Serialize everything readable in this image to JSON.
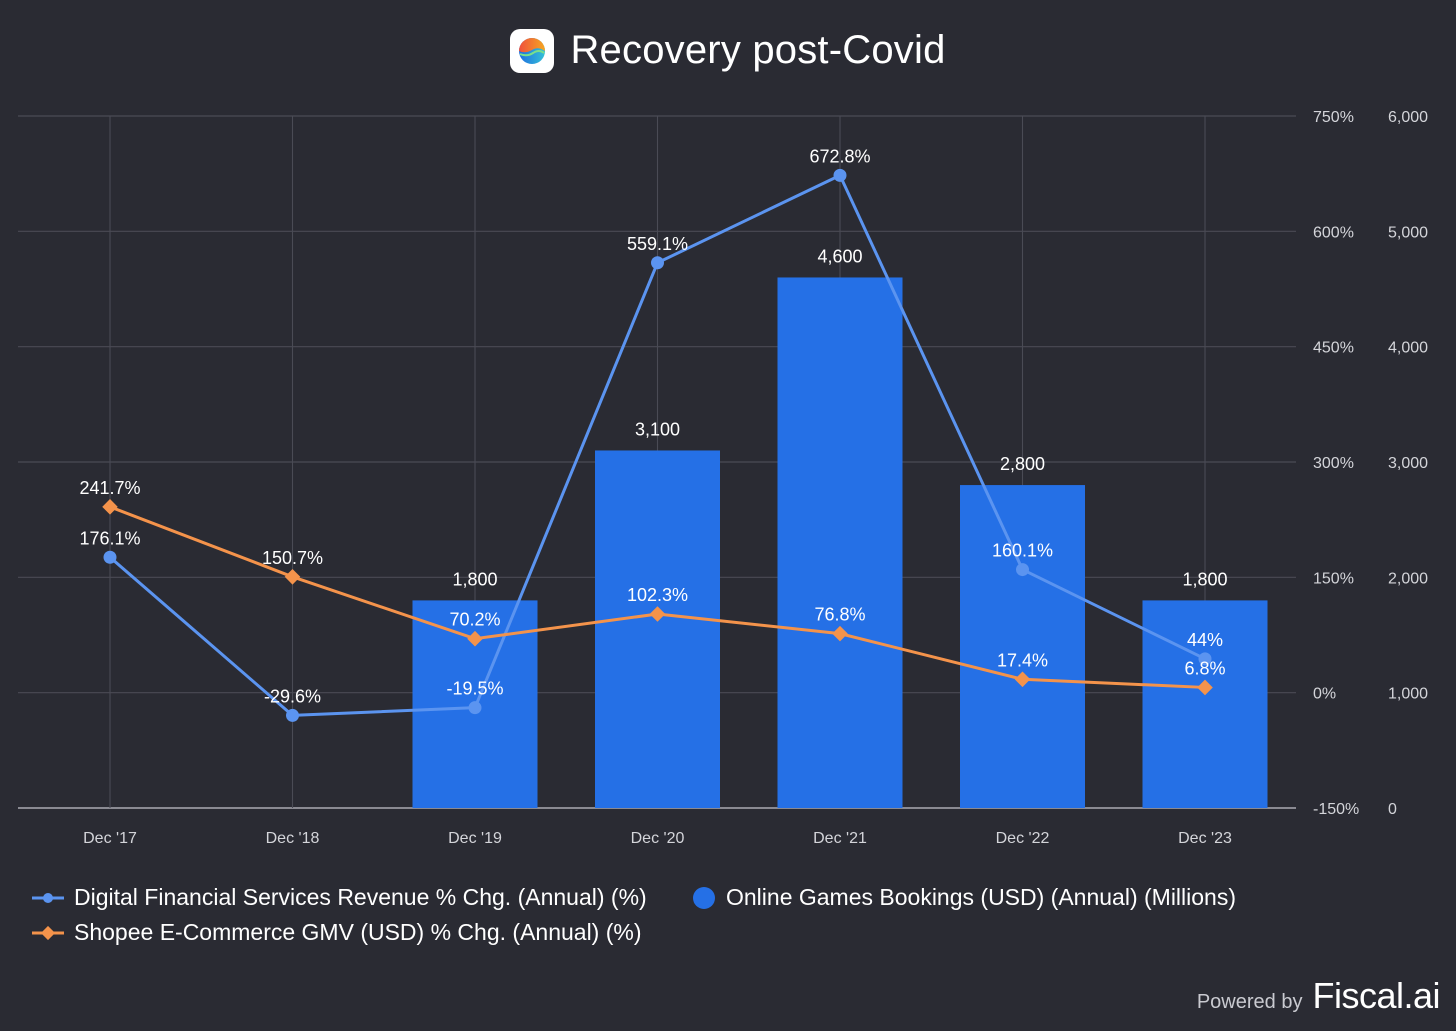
{
  "header": {
    "title": "Recovery post-Covid",
    "icon": "globe-app-icon"
  },
  "colors": {
    "background": "#2a2b33",
    "grid": "#4a4b55",
    "bars": "#2570e6",
    "line_dfs": "#5b94f0",
    "line_shopee": "#f4934b",
    "text": "#ffffff",
    "axis_text": "#d4d5da"
  },
  "chart_data": {
    "type": "bar",
    "categories": [
      "Dec '17",
      "Dec '18",
      "Dec '19",
      "Dec '20",
      "Dec '21",
      "Dec '22",
      "Dec '23"
    ],
    "y_left": {
      "range": [
        -150,
        750
      ],
      "ticks": [
        750,
        600,
        450,
        300,
        150,
        0,
        -150
      ],
      "tick_labels": [
        "750%",
        "600%",
        "450%",
        "300%",
        "150%",
        "0%",
        "-150%"
      ]
    },
    "y_right": {
      "range": [
        0,
        6000
      ],
      "ticks": [
        6000,
        5000,
        4000,
        3000,
        2000,
        1000,
        0
      ],
      "tick_labels": [
        "6,000",
        "5,000",
        "4,000",
        "3,000",
        "2,000",
        "1,000",
        "0"
      ]
    },
    "grid": true,
    "legend_position": "bottom-left",
    "series": [
      {
        "name": "Online Games Bookings (USD) (Annual) (Millions)",
        "type": "bar",
        "axis": "right",
        "values": [
          null,
          null,
          1800,
          3100,
          4600,
          2800,
          1800
        ],
        "labels": [
          null,
          null,
          "1,800",
          "3,100",
          "4,600",
          "2,800",
          "1,800"
        ]
      },
      {
        "name": "Digital Financial Services Revenue % Chg. (Annual) (%)",
        "type": "line",
        "axis": "left",
        "values": [
          176.1,
          -29.6,
          -19.5,
          559.1,
          672.8,
          160.1,
          44
        ],
        "labels": [
          "176.1%",
          "-29.6%",
          "-19.5%",
          "559.1%",
          "672.8%",
          "160.1%",
          "44%"
        ]
      },
      {
        "name": "Shopee E-Commerce GMV (USD) % Chg. (Annual) (%)",
        "type": "line",
        "axis": "left",
        "values": [
          241.7,
          150.7,
          70.2,
          102.3,
          76.8,
          17.4,
          6.8
        ],
        "labels": [
          "241.7%",
          "150.7%",
          "70.2%",
          "102.3%",
          "76.8%",
          "17.4%",
          "6.8%"
        ]
      }
    ]
  },
  "footer": {
    "powered_by": "Powered by",
    "brand": "Fiscal.ai"
  }
}
